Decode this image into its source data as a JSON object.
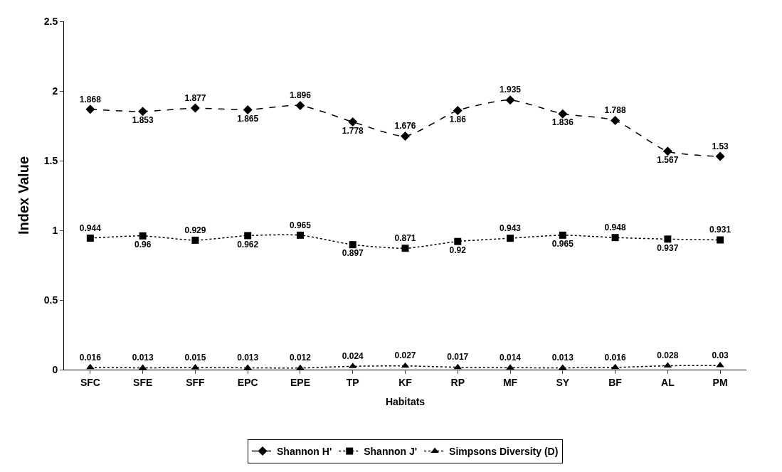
{
  "chart_data": {
    "type": "line",
    "xlabel": "Habitats",
    "ylabel": "Index Value",
    "categories": [
      "SFC",
      "SFE",
      "SFF",
      "EPC",
      "EPE",
      "TP",
      "KF",
      "RP",
      "MF",
      "SY",
      "BF",
      "AL",
      "PM"
    ],
    "series": [
      {
        "name": "Shannon H'",
        "color": "#000000",
        "marker": "diamond",
        "line_style": "dashed",
        "values": [
          1.868,
          1.853,
          1.877,
          1.865,
          1.896,
          1.778,
          1.676,
          1.86,
          1.935,
          1.836,
          1.788,
          1.567,
          1.53
        ]
      },
      {
        "name": "Shannon J'",
        "color": "#000000",
        "marker": "square",
        "line_style": "dotted",
        "values": [
          0.944,
          0.96,
          0.929,
          0.962,
          0.965,
          0.897,
          0.871,
          0.92,
          0.943,
          0.965,
          0.948,
          0.937,
          0.931
        ]
      },
      {
        "name": "Simpsons Diversity (D)",
        "color": "#000000",
        "marker": "triangle",
        "line_style": "dotted",
        "values": [
          0.016,
          0.013,
          0.015,
          0.013,
          0.012,
          0.024,
          0.027,
          0.017,
          0.014,
          0.013,
          0.016,
          0.028,
          0.03
        ]
      }
    ],
    "ylim": [
      0,
      2.5
    ],
    "yticks": [
      0,
      0.5,
      1,
      1.5,
      2,
      2.5
    ],
    "legend": "bottom",
    "data_labels": true
  }
}
